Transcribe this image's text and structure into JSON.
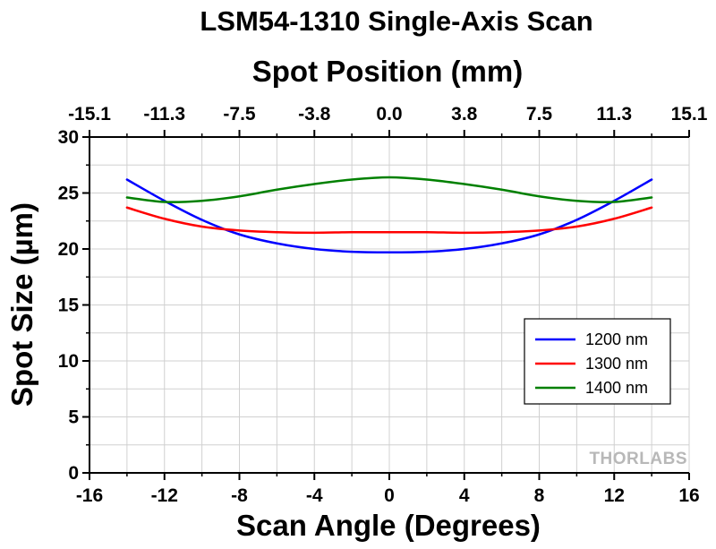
{
  "chart_data": {
    "type": "line",
    "title": "LSM54-1310 Single-Axis Scan",
    "xlabel": "Scan Angle (Degrees)",
    "ylabel": "Spot Size (µm)",
    "x2label": "Spot Position (mm)",
    "xlim": [
      -16,
      16
    ],
    "ylim": [
      0,
      30
    ],
    "x_ticks": [
      -16,
      -12,
      -8,
      -4,
      0,
      4,
      8,
      12,
      16
    ],
    "x_tick_labels": [
      "-16",
      "-12",
      "-8",
      "-4",
      "0",
      "4",
      "8",
      "12",
      "16"
    ],
    "y_ticks": [
      0,
      5,
      10,
      15,
      20,
      25,
      30
    ],
    "y_tick_labels": [
      "0",
      "5",
      "10",
      "15",
      "20",
      "25",
      "30"
    ],
    "top_tick_positions": [
      -16,
      -12,
      -8,
      -4,
      0,
      4,
      8,
      12,
      16
    ],
    "top_tick_labels": [
      "-15.1",
      "-11.3",
      "-7.5",
      "-3.8",
      "0.0",
      "3.8",
      "7.5",
      "11.3",
      "15.1"
    ],
    "grid": true,
    "legend_position": "lower-right",
    "watermark": "THORLABS",
    "series": [
      {
        "name": "1200 nm",
        "color": "#0000ff",
        "x": [
          -14,
          -12,
          -10,
          -8,
          -6,
          -4,
          -2,
          0,
          2,
          4,
          6,
          8,
          10,
          12,
          14
        ],
        "y": [
          26.2,
          24.3,
          22.6,
          21.3,
          20.5,
          20.0,
          19.75,
          19.7,
          19.75,
          20.0,
          20.5,
          21.3,
          22.6,
          24.3,
          26.2
        ]
      },
      {
        "name": "1300 nm",
        "color": "#ff0000",
        "x": [
          -14,
          -12,
          -10,
          -8,
          -6,
          -4,
          -2,
          0,
          2,
          4,
          6,
          8,
          10,
          12,
          14
        ],
        "y": [
          23.7,
          22.7,
          22.0,
          21.65,
          21.5,
          21.45,
          21.5,
          21.5,
          21.5,
          21.45,
          21.5,
          21.65,
          22.0,
          22.7,
          23.7
        ]
      },
      {
        "name": "1400 nm",
        "color": "#008000",
        "x": [
          -14,
          -12,
          -10,
          -8,
          -6,
          -4,
          -2,
          0,
          2,
          4,
          6,
          8,
          10,
          12,
          14
        ],
        "y": [
          24.6,
          24.2,
          24.3,
          24.7,
          25.3,
          25.8,
          26.2,
          26.4,
          26.2,
          25.8,
          25.3,
          24.7,
          24.3,
          24.2,
          24.6
        ]
      }
    ]
  }
}
